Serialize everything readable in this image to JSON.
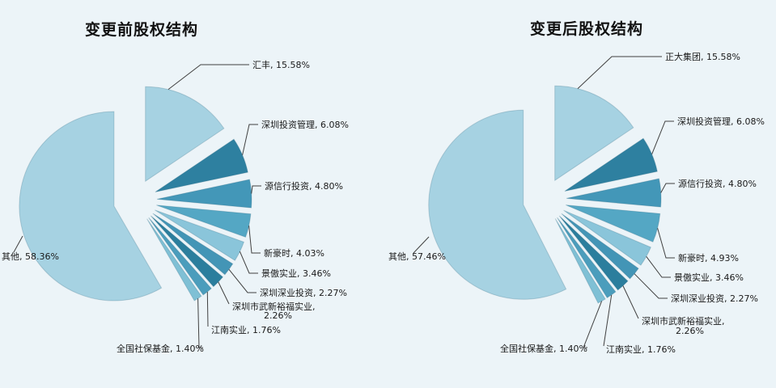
{
  "page": {
    "background": "#ecf4f8",
    "title_color": "#111111",
    "label_color": "#1a1a1a",
    "leader_color": "#404040",
    "slice_edge_color": "rgba(45,100,125,0.25)"
  },
  "chart_data": [
    {
      "type": "pie",
      "title": "变更前股权结构",
      "value_unit": "%",
      "start_angle": "12-oclock",
      "direction": "clockwise",
      "exploded": true,
      "legend_position": "none",
      "categories": [
        "汇丰",
        "深圳投资管理",
        "源信行投资",
        "新豪时",
        "景傲实业",
        "深圳深业投资",
        "深圳市武新裕福实业",
        "江南实业",
        "全国社保基金",
        "其他"
      ],
      "values": [
        15.58,
        6.08,
        4.8,
        4.03,
        3.46,
        2.27,
        2.26,
        1.76,
        1.4,
        58.36
      ],
      "labels": [
        "汇丰, 15.58%",
        "深圳投资管理, 6.08%",
        "源信行投资, 4.80%",
        "新豪时, 4.03%",
        "景傲实业, 3.46%",
        "深圳深业投资, 2.27%",
        "深圳市武新裕福实业, 2.26%",
        "江南实业, 1.76%",
        "全国社保基金, 1.40%",
        "其他, 58.36%"
      ],
      "colors": [
        "#a6d2e2",
        "#2e80a0",
        "#4397b8",
        "#54a7c4",
        "#8ac5da",
        "#4395b6",
        "#2b7e9d",
        "#4b9dbc",
        "#7fc0d5",
        "#a6d2e2"
      ]
    },
    {
      "type": "pie",
      "title": "变更后股权结构",
      "value_unit": "%",
      "start_angle": "12-oclock",
      "direction": "clockwise",
      "exploded": true,
      "legend_position": "none",
      "categories": [
        "正大集团",
        "深圳投资管理",
        "源信行投资",
        "新豪时",
        "景傲实业",
        "深圳深业投资",
        "深圳市武新裕福实业",
        "江南实业",
        "全国社保基金",
        "其他"
      ],
      "values": [
        15.58,
        6.08,
        4.8,
        4.93,
        3.46,
        2.27,
        2.26,
        1.76,
        1.4,
        57.46
      ],
      "labels": [
        "正大集团, 15.58%",
        "深圳投资管理, 6.08%",
        "源信行投资, 4.80%",
        "新豪时, 4.93%",
        "景傲实业, 3.46%",
        "深圳深业投资, 2.27%",
        "深圳市武新裕福实业, 2.26%",
        "江南实业, 1.76%",
        "全国社保基金, 1.40%",
        "其他, 57.46%"
      ]
    }
  ]
}
